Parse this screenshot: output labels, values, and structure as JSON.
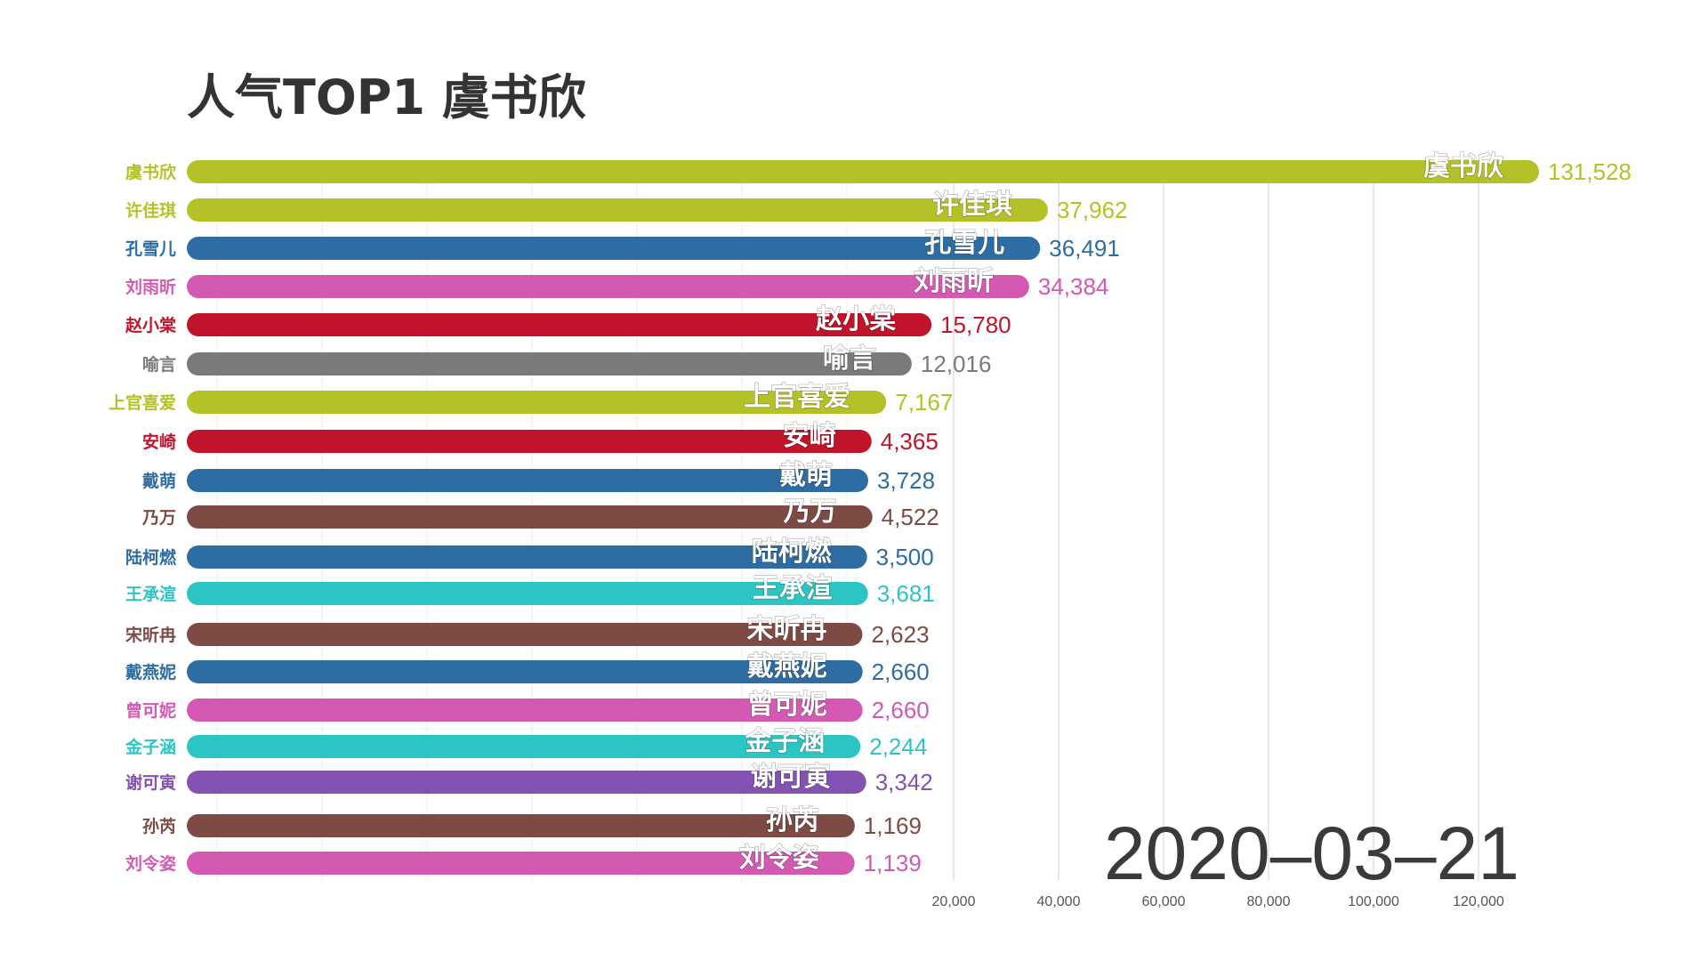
{
  "chart_data": {
    "type": "bar",
    "orientation": "horizontal",
    "title": "人气TOP1 虞书欣",
    "date": "2020–03–21",
    "xlim": [
      0,
      135000
    ],
    "xticks": [
      20000,
      40000,
      60000,
      80000,
      100000,
      120000
    ],
    "xtick_labels": [
      "20,000",
      "40,000",
      "60,000",
      "80,000",
      "100,000",
      "120,000"
    ],
    "grid": true,
    "bars": [
      {
        "name": "虞书欣",
        "value": 131528,
        "value_label": "131,528",
        "color": "#b5c227"
      },
      {
        "name": "许佳琪",
        "value": 37962,
        "value_label": "37,962",
        "color": "#b5c227"
      },
      {
        "name": "孔雪儿",
        "value": 36491,
        "value_label": "36,491",
        "color": "#2e6da4"
      },
      {
        "name": "刘雨昕",
        "value": 34384,
        "value_label": "34,384",
        "color": "#d459b3"
      },
      {
        "name": "赵小棠",
        "value": 15780,
        "value_label": "15,780",
        "color": "#c0142a"
      },
      {
        "name": "喻言",
        "value": 12016,
        "value_label": "12,016",
        "color": "#7a7a7a"
      },
      {
        "name": "上官喜爱",
        "value": 7167,
        "value_label": "7,167",
        "color": "#b5c227"
      },
      {
        "name": "安崎",
        "value": 4365,
        "value_label": "4,365",
        "color": "#c0142a"
      },
      {
        "name": "戴萌",
        "value": 3728,
        "value_label": "3,728",
        "color": "#2e6da4"
      },
      {
        "name": "乃万",
        "value": 4522,
        "value_label": "4,522",
        "color": "#7e4b44"
      },
      {
        "name": "陆柯燃",
        "value": 3500,
        "value_label": "3,500",
        "color": "#2e6da4"
      },
      {
        "name": "王承渲",
        "value": 3681,
        "value_label": "3,681",
        "color": "#2bc6c4"
      },
      {
        "name": "宋昕冉",
        "value": 2623,
        "value_label": "2,623",
        "color": "#7e4b44"
      },
      {
        "name": "戴燕妮",
        "value": 2660,
        "value_label": "2,660",
        "color": "#2e6da4"
      },
      {
        "name": "曾可妮",
        "value": 2660,
        "value_label": "2,660",
        "color": "#d459b3"
      },
      {
        "name": "金子涵",
        "value": 2244,
        "value_label": "2,244",
        "color": "#2bc6c4"
      },
      {
        "name": "谢可寅",
        "value": 3342,
        "value_label": "3,342",
        "color": "#8352b3"
      },
      {
        "name": "孙芮",
        "value": 1169,
        "value_label": "1,169",
        "color": "#7e4b44"
      },
      {
        "name": "刘令姿",
        "value": 1139,
        "value_label": "1,139",
        "color": "#d459b3"
      }
    ]
  }
}
